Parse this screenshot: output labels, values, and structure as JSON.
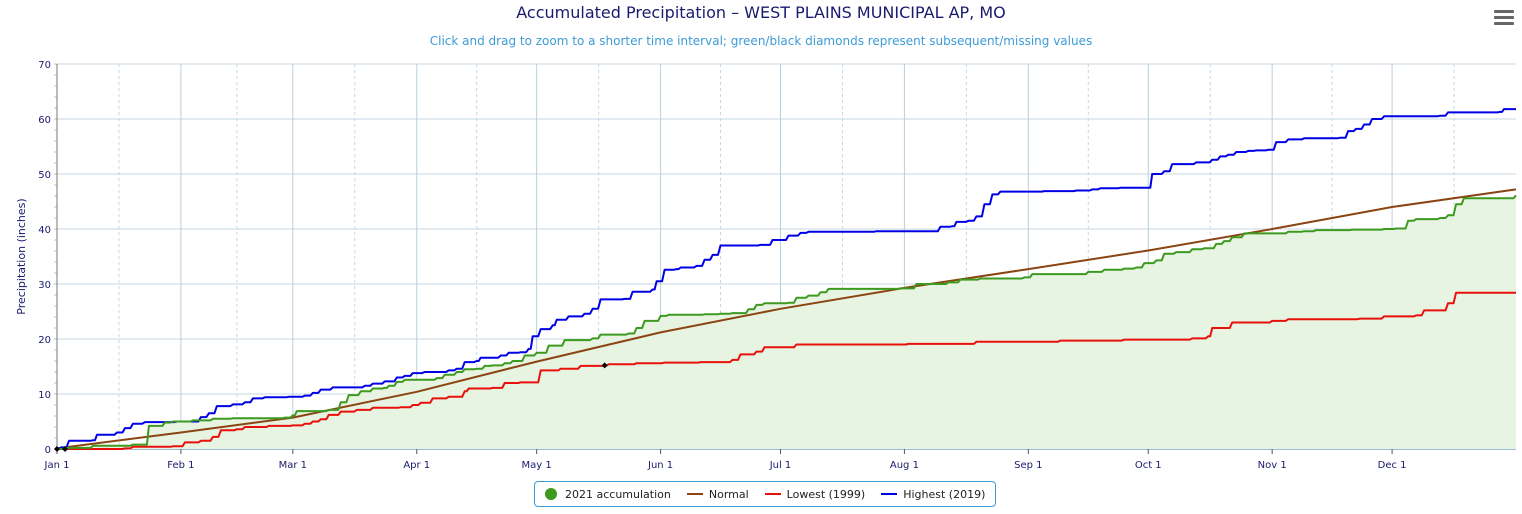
{
  "chart_data": {
    "type": "line",
    "title": "Accumulated Precipitation – WEST PLAINS MUNICIPAL AP, MO",
    "subtitle": "Click and drag to zoom to a shorter time interval; green/black diamonds represent subsequent/missing values",
    "ylabel": "Precipitation (inches)",
    "xlabel": "",
    "x_unit": "day of year",
    "ylim": [
      0,
      70
    ],
    "xlim": [
      1,
      366
    ],
    "y_ticks": [
      "0",
      "10",
      "20",
      "30",
      "40",
      "50",
      "60",
      "70"
    ],
    "x_ticks": [
      {
        "label": "Jan 1",
        "day": 1
      },
      {
        "label": "Feb 1",
        "day": 32
      },
      {
        "label": "Mar 1",
        "day": 60
      },
      {
        "label": "Apr 1",
        "day": 91
      },
      {
        "label": "May 1",
        "day": 121
      },
      {
        "label": "Jun 1",
        "day": 152
      },
      {
        "label": "Jul 1",
        "day": 182
      },
      {
        "label": "Aug 1",
        "day": 213
      },
      {
        "label": "Sep 1",
        "day": 244
      },
      {
        "label": "Oct 1",
        "day": 274
      },
      {
        "label": "Nov 1",
        "day": 305
      },
      {
        "label": "Dec 1",
        "day": 335
      }
    ],
    "grid": true,
    "legend_position": "bottom-center",
    "series": [
      {
        "name": "2021 accumulation",
        "color": "#3c9a1e",
        "fill": "#e8f4e2",
        "style": "step-area",
        "points": [
          [
            1,
            0
          ],
          [
            3,
            0.2
          ],
          [
            10,
            0.6
          ],
          [
            20,
            0.8
          ],
          [
            23,
            0.8
          ],
          [
            24,
            4.2
          ],
          [
            28,
            4.8
          ],
          [
            30,
            5.0
          ],
          [
            35,
            5.2
          ],
          [
            40,
            5.5
          ],
          [
            45,
            5.6
          ],
          [
            58,
            5.7
          ],
          [
            60,
            6.1
          ],
          [
            61,
            6.9
          ],
          [
            69,
            7.1
          ],
          [
            72,
            8.5
          ],
          [
            74,
            9.8
          ],
          [
            77,
            10.5
          ],
          [
            80,
            11.0
          ],
          [
            83,
            11.1
          ],
          [
            84,
            11.5
          ],
          [
            86,
            12.2
          ],
          [
            88,
            12.6
          ],
          [
            95,
            12.6
          ],
          [
            96,
            12.9
          ],
          [
            98,
            13.5
          ],
          [
            101,
            14.0
          ],
          [
            103,
            14.5
          ],
          [
            106,
            14.6
          ],
          [
            108,
            15.1
          ],
          [
            110,
            15.2
          ],
          [
            113,
            15.6
          ],
          [
            115,
            16.0
          ],
          [
            118,
            17.0
          ],
          [
            121,
            17.5
          ],
          [
            124,
            18.8
          ],
          [
            128,
            19.8
          ],
          [
            135,
            20.1
          ],
          [
            137,
            20.8
          ],
          [
            144,
            21.0
          ],
          [
            146,
            22.0
          ],
          [
            148,
            23.3
          ],
          [
            152,
            24.2
          ],
          [
            154,
            24.4
          ],
          [
            163,
            24.5
          ],
          [
            167,
            24.6
          ],
          [
            170,
            24.7
          ],
          [
            174,
            25.4
          ],
          [
            176,
            26.2
          ],
          [
            178,
            26.5
          ],
          [
            184,
            26.6
          ],
          [
            186,
            27.5
          ],
          [
            189,
            27.9
          ],
          [
            192,
            28.5
          ],
          [
            194,
            29.1
          ],
          [
            212,
            29.2
          ],
          [
            216,
            30.0
          ],
          [
            224,
            30.3
          ],
          [
            227,
            30.8
          ],
          [
            232,
            31.0
          ],
          [
            243,
            31.2
          ],
          [
            245,
            31.8
          ],
          [
            259,
            32.2
          ],
          [
            263,
            32.6
          ],
          [
            268,
            32.8
          ],
          [
            271,
            33.0
          ],
          [
            273,
            33.8
          ],
          [
            276,
            34.3
          ],
          [
            278,
            35.5
          ],
          [
            281,
            35.8
          ],
          [
            285,
            36.3
          ],
          [
            288,
            36.5
          ],
          [
            291,
            37.3
          ],
          [
            293,
            37.8
          ],
          [
            295,
            38.5
          ],
          [
            298,
            39.2
          ],
          [
            309,
            39.5
          ],
          [
            313,
            39.6
          ],
          [
            316,
            39.8
          ],
          [
            325,
            39.9
          ],
          [
            333,
            40.0
          ],
          [
            336,
            40.1
          ],
          [
            339,
            41.5
          ],
          [
            341,
            41.8
          ],
          [
            347,
            42.0
          ],
          [
            349,
            42.5
          ],
          [
            351,
            44.5
          ],
          [
            353,
            45.6
          ],
          [
            362,
            45.6
          ],
          [
            366,
            46.1
          ]
        ]
      },
      {
        "name": "Normal",
        "color": "#8b4513",
        "style": "line",
        "points": [
          [
            1,
            0.1
          ],
          [
            32,
            3.0
          ],
          [
            60,
            5.7
          ],
          [
            91,
            10.4
          ],
          [
            121,
            15.9
          ],
          [
            152,
            21.2
          ],
          [
            182,
            25.5
          ],
          [
            213,
            29.3
          ],
          [
            244,
            32.7
          ],
          [
            274,
            36.1
          ],
          [
            305,
            40.0
          ],
          [
            335,
            44.0
          ],
          [
            366,
            47.2
          ]
        ]
      },
      {
        "name": "Lowest (1999)",
        "color": "#e8100b",
        "style": "step",
        "points": [
          [
            1,
            0
          ],
          [
            18,
            0.1
          ],
          [
            20,
            0.4
          ],
          [
            30,
            0.5
          ],
          [
            33,
            1.2
          ],
          [
            37,
            1.5
          ],
          [
            40,
            2.2
          ],
          [
            42,
            3.4
          ],
          [
            46,
            3.6
          ],
          [
            48,
            4.0
          ],
          [
            54,
            4.2
          ],
          [
            60,
            4.3
          ],
          [
            63,
            4.6
          ],
          [
            65,
            5.0
          ],
          [
            67,
            5.4
          ],
          [
            69,
            6.2
          ],
          [
            72,
            6.8
          ],
          [
            76,
            7.1
          ],
          [
            80,
            7.5
          ],
          [
            87,
            7.6
          ],
          [
            90,
            8.0
          ],
          [
            92,
            8.4
          ],
          [
            95,
            9.2
          ],
          [
            99,
            9.5
          ],
          [
            103,
            10.5
          ],
          [
            104,
            11.0
          ],
          [
            110,
            11.1
          ],
          [
            113,
            12.0
          ],
          [
            117,
            12.1
          ],
          [
            122,
            14.3
          ],
          [
            127,
            14.6
          ],
          [
            132,
            15.1
          ],
          [
            139,
            15.4
          ],
          [
            146,
            15.6
          ],
          [
            153,
            15.7
          ],
          [
            162,
            15.8
          ],
          [
            170,
            16.2
          ],
          [
            172,
            17.2
          ],
          [
            176,
            17.7
          ],
          [
            178,
            18.5
          ],
          [
            186,
            19.0
          ],
          [
            200,
            19.0
          ],
          [
            214,
            19.1
          ],
          [
            231,
            19.5
          ],
          [
            252,
            19.7
          ],
          [
            268,
            19.9
          ],
          [
            285,
            20.1
          ],
          [
            289,
            20.5
          ],
          [
            290,
            22.0
          ],
          [
            295,
            23.0
          ],
          [
            305,
            23.3
          ],
          [
            309,
            23.6
          ],
          [
            327,
            23.7
          ],
          [
            333,
            24.1
          ],
          [
            341,
            24.3
          ],
          [
            343,
            25.2
          ],
          [
            349,
            26.5
          ],
          [
            351,
            28.4
          ],
          [
            366,
            28.4
          ]
        ]
      },
      {
        "name": "Highest (2019)",
        "color": "#0000e6",
        "style": "step",
        "points": [
          [
            1,
            0
          ],
          [
            2,
            0.3
          ],
          [
            4,
            1.5
          ],
          [
            10,
            1.6
          ],
          [
            11,
            2.6
          ],
          [
            16,
            3.0
          ],
          [
            18,
            3.8
          ],
          [
            20,
            4.6
          ],
          [
            23,
            4.9
          ],
          [
            31,
            5.0
          ],
          [
            37,
            5.8
          ],
          [
            39,
            6.5
          ],
          [
            41,
            7.8
          ],
          [
            45,
            8.1
          ],
          [
            48,
            8.5
          ],
          [
            50,
            9.2
          ],
          [
            53,
            9.4
          ],
          [
            59,
            9.5
          ],
          [
            63,
            9.7
          ],
          [
            65,
            10.2
          ],
          [
            67,
            10.8
          ],
          [
            70,
            11.2
          ],
          [
            78,
            11.5
          ],
          [
            80,
            11.9
          ],
          [
            83,
            12.3
          ],
          [
            86,
            13.0
          ],
          [
            88,
            13.3
          ],
          [
            90,
            13.8
          ],
          [
            93,
            14.0
          ],
          [
            99,
            14.3
          ],
          [
            101,
            14.6
          ],
          [
            103,
            15.8
          ],
          [
            106,
            16.0
          ],
          [
            107,
            16.6
          ],
          [
            112,
            17.0
          ],
          [
            114,
            17.5
          ],
          [
            117,
            17.6
          ],
          [
            119,
            18.2
          ],
          [
            120,
            20.5
          ],
          [
            122,
            21.8
          ],
          [
            125,
            22.5
          ],
          [
            126,
            23.5
          ],
          [
            129,
            24.1
          ],
          [
            133,
            24.6
          ],
          [
            135,
            25.5
          ],
          [
            137,
            27.2
          ],
          [
            143,
            27.3
          ],
          [
            145,
            28.6
          ],
          [
            150,
            29.0
          ],
          [
            151,
            30.5
          ],
          [
            153,
            32.6
          ],
          [
            156,
            32.7
          ],
          [
            157,
            33.0
          ],
          [
            161,
            33.3
          ],
          [
            163,
            34.4
          ],
          [
            165,
            35.3
          ],
          [
            167,
            37.0
          ],
          [
            177,
            37.1
          ],
          [
            180,
            38.0
          ],
          [
            184,
            38.8
          ],
          [
            187,
            39.3
          ],
          [
            189,
            39.5
          ],
          [
            206,
            39.6
          ],
          [
            217,
            39.6
          ],
          [
            222,
            40.4
          ],
          [
            225,
            40.5
          ],
          [
            226,
            41.3
          ],
          [
            229,
            41.5
          ],
          [
            231,
            42.3
          ],
          [
            233,
            44.5
          ],
          [
            235,
            46.3
          ],
          [
            237,
            46.8
          ],
          [
            248,
            46.9
          ],
          [
            256,
            47.0
          ],
          [
            260,
            47.2
          ],
          [
            262,
            47.4
          ],
          [
            267,
            47.5
          ],
          [
            274,
            47.5
          ],
          [
            275,
            50.0
          ],
          [
            278,
            50.5
          ],
          [
            280,
            51.8
          ],
          [
            286,
            52.1
          ],
          [
            290,
            52.6
          ],
          [
            292,
            53.2
          ],
          [
            294,
            53.5
          ],
          [
            296,
            54.0
          ],
          [
            299,
            54.2
          ],
          [
            301,
            54.3
          ],
          [
            304,
            54.4
          ],
          [
            306,
            55.8
          ],
          [
            309,
            56.3
          ],
          [
            313,
            56.5
          ],
          [
            316,
            56.5
          ],
          [
            322,
            56.6
          ],
          [
            324,
            57.8
          ],
          [
            326,
            58.2
          ],
          [
            328,
            59.0
          ],
          [
            330,
            60.0
          ],
          [
            333,
            60.5
          ],
          [
            340,
            60.5
          ],
          [
            347,
            60.6
          ],
          [
            349,
            61.2
          ],
          [
            362,
            61.3
          ],
          [
            363,
            61.8
          ],
          [
            366,
            61.8
          ]
        ]
      }
    ],
    "markers": [
      {
        "series": "Lowest (1999)",
        "day": 138,
        "value": 15.2,
        "shape": "diamond",
        "color": "#000000"
      },
      {
        "series": "2021 accumulation",
        "day": 1,
        "value": 0,
        "shape": "diamond",
        "color": "#000000"
      },
      {
        "series": "2021 accumulation",
        "day": 3,
        "value": 0,
        "shape": "diamond",
        "color": "#000000"
      }
    ]
  },
  "menu": {
    "icon": "hamburger-menu-icon"
  }
}
